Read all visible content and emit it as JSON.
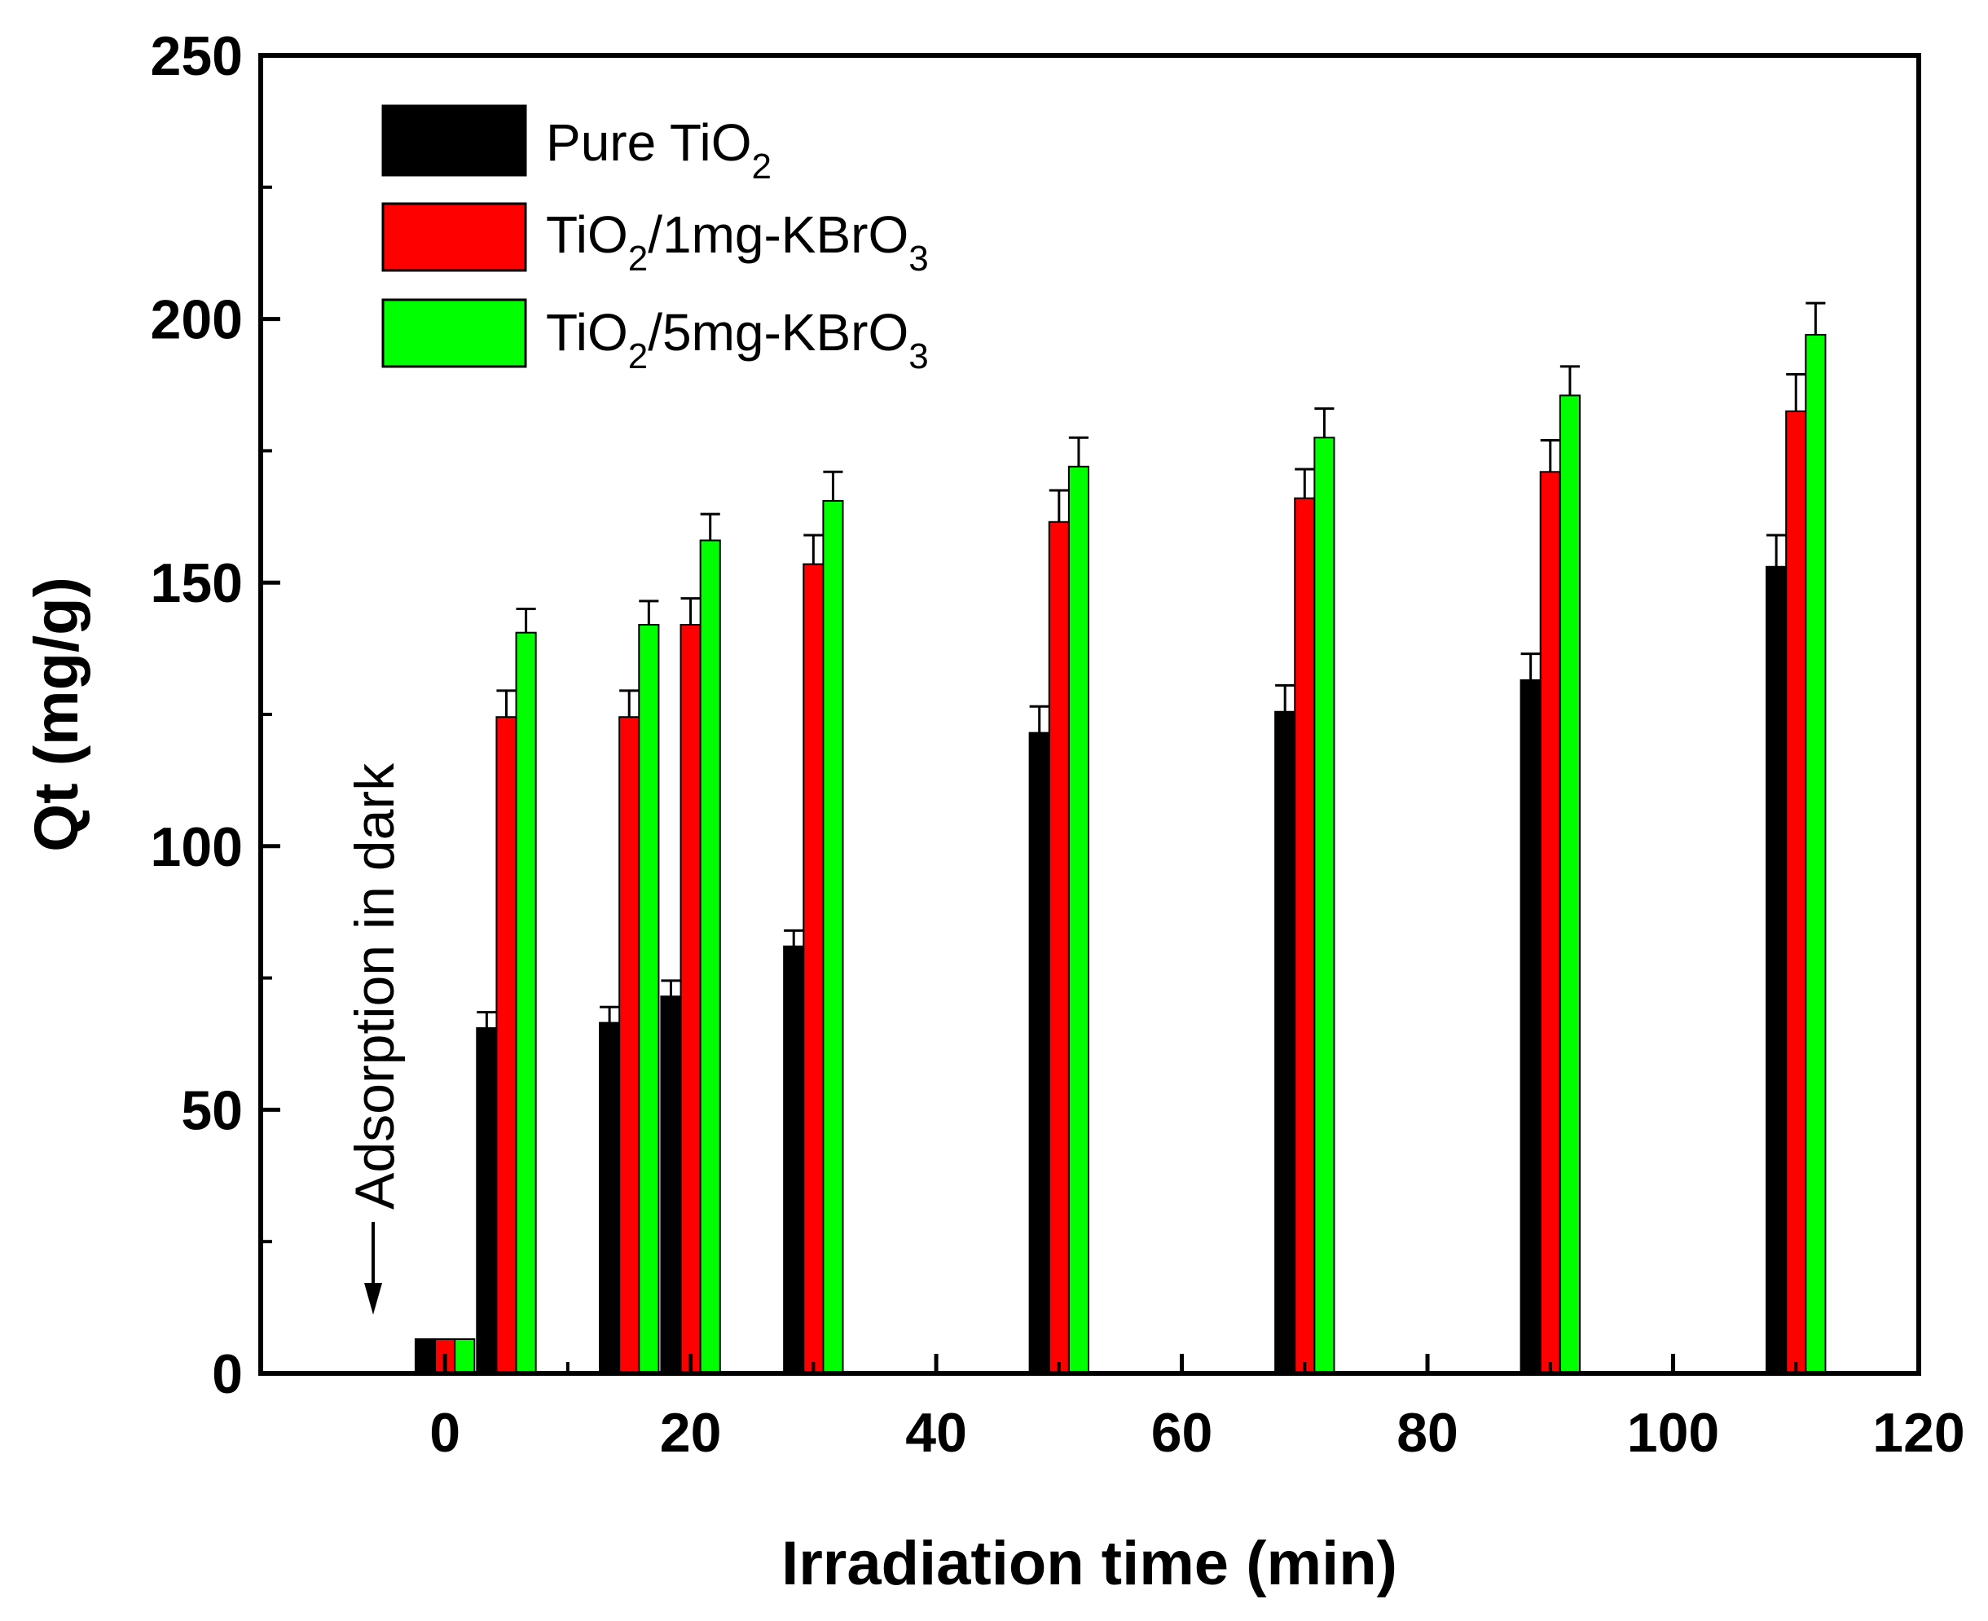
{
  "chart_data": {
    "type": "bar",
    "title": "",
    "xlabel": "Irradiation time (min)",
    "ylabel": "Qt (mg/g)",
    "xlim": [
      -15,
      120
    ],
    "ylim": [
      0,
      250
    ],
    "xticks": [
      "0",
      "20",
      "40",
      "60",
      "80",
      "100",
      "120"
    ],
    "yticks": [
      "0",
      "50",
      "100",
      "150",
      "200",
      "250"
    ],
    "x": [
      0,
      5,
      15,
      20,
      30,
      50,
      70,
      90,
      110
    ],
    "series": [
      {
        "name": "Pure TiO2",
        "label_main": "Pure TiO",
        "label_sub": "2",
        "label_tail": "",
        "color": "#000000",
        "values": [
          6.5,
          65.5,
          66.5,
          71.5,
          81,
          121.5,
          125.5,
          131.5,
          153
        ],
        "errors": [
          0.5,
          3,
          3,
          3,
          3,
          5,
          5,
          5,
          6
        ]
      },
      {
        "name": "TiO2/1mg-KBrO3",
        "label_main": "TiO",
        "label_sub": "2",
        "label_tail": "/1mg-KBrO",
        "label_sub2": "3",
        "color": "#ff0000",
        "values": [
          6.5,
          124.5,
          124.5,
          142,
          153.5,
          161.5,
          166,
          171,
          182.5
        ],
        "errors": [
          0.5,
          5,
          5,
          5,
          5.5,
          6,
          5.5,
          6,
          7
        ]
      },
      {
        "name": "TiO2/5mg-KBrO3",
        "label_main": "TiO",
        "label_sub": "2",
        "label_tail": "/5mg-KBrO",
        "label_sub2": "3",
        "color": "#00ff00",
        "values": [
          6.5,
          140.5,
          142,
          158,
          165.5,
          172,
          177.5,
          185.5,
          197
        ],
        "errors": [
          0.5,
          4.5,
          4.5,
          5,
          5.5,
          5.5,
          5.5,
          5.5,
          6
        ]
      }
    ],
    "annotation": "Adsorption in dark",
    "legend_position": "top-left"
  }
}
